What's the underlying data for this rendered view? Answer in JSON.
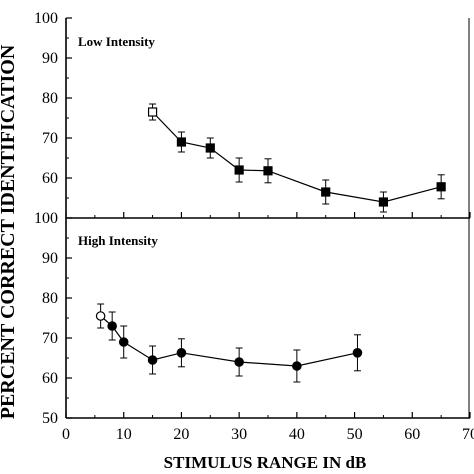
{
  "chart_data": {
    "type": "line",
    "xlabel": "STIMULUS RANGE IN dB",
    "ylabel": "PERCENT CORRECT IDENTIFICATION",
    "xlim": [
      0,
      70
    ],
    "x_ticks": [
      "0",
      "10",
      "20",
      "30",
      "40",
      "50",
      "60",
      "70"
    ],
    "panels": [
      {
        "label": "Low Intensity",
        "ylim": [
          50,
          100
        ],
        "y_ticks": [
          "60",
          "70",
          "80",
          "90",
          "100"
        ],
        "x": [
          15,
          20,
          25,
          30,
          35,
          45,
          55,
          65
        ],
        "y": [
          76.5,
          69,
          67.5,
          62,
          61.8,
          56.5,
          54,
          57.8
        ],
        "err": [
          2,
          2.5,
          2.5,
          3,
          3,
          3,
          2.5,
          3
        ],
        "open": [
          true,
          false,
          false,
          false,
          false,
          false,
          false,
          false
        ],
        "marker": "square"
      },
      {
        "label": "High Intensity",
        "ylim": [
          50,
          100
        ],
        "y_ticks": [
          "50",
          "60",
          "70",
          "80",
          "90",
          "100"
        ],
        "x": [
          6,
          8,
          10,
          15,
          20,
          30,
          40,
          50.5
        ],
        "y": [
          75.5,
          73,
          69,
          64.5,
          66.3,
          64,
          63,
          66.3
        ],
        "err": [
          3,
          3.5,
          4,
          3.5,
          3.5,
          3.5,
          4,
          4.5
        ],
        "open": [
          true,
          false,
          false,
          false,
          false,
          false,
          false,
          false
        ],
        "marker": "circle"
      }
    ]
  }
}
